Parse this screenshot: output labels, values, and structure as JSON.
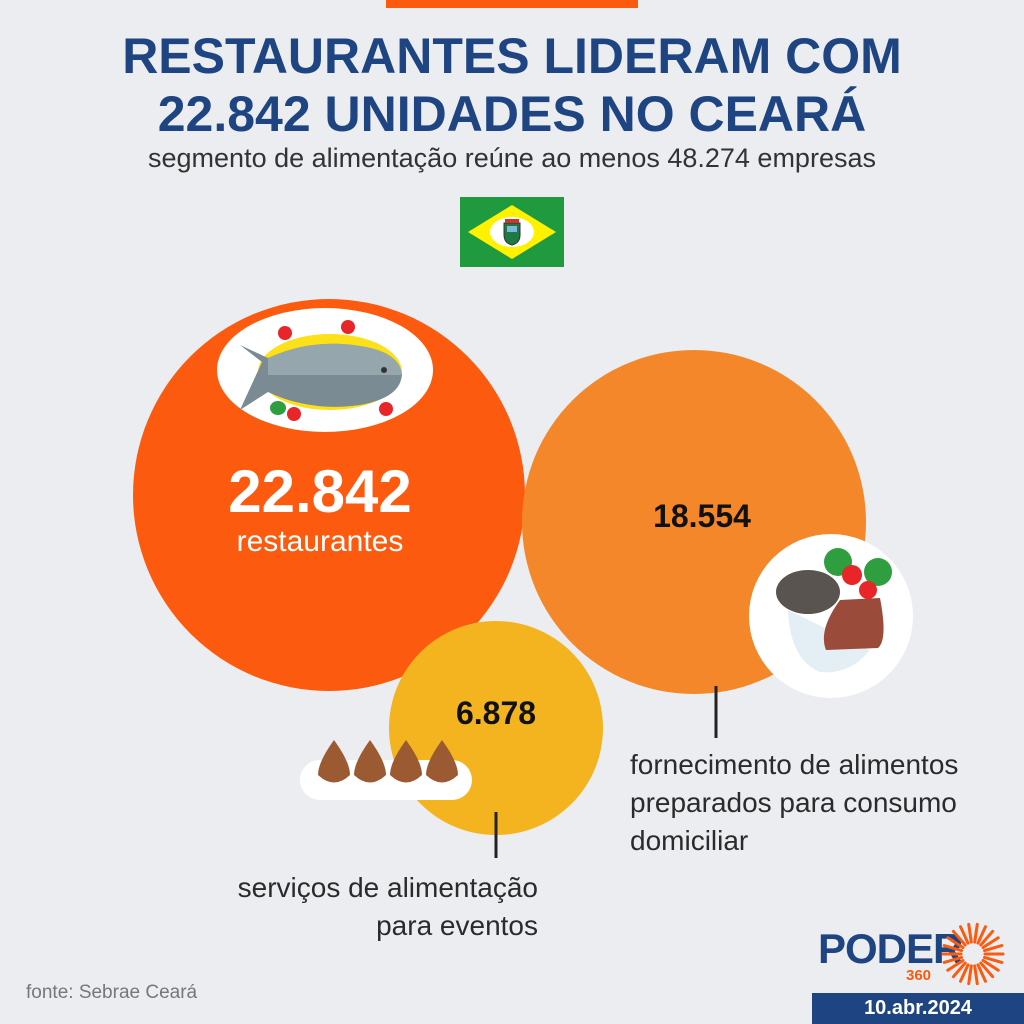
{
  "title_line1": "RESTAURANTES LIDERAM COM",
  "title_line2": "22.842 UNIDADES NO CEARÁ",
  "subtitle": "segmento de alimentação reúne ao menos 48.274 empresas",
  "source": "fonte: Sebrae Ceará",
  "logo": {
    "name": "PODER",
    "sub": "360"
  },
  "date": "10.abr.2024",
  "colors": {
    "title": "#1e4582",
    "restaurantes": "#fc5a0f",
    "fornecimento": "#f4872a",
    "eventos": "#f4b420"
  },
  "chart_data": {
    "type": "bubble",
    "items": [
      {
        "label": "restaurantes",
        "value": 22842,
        "value_text": "22.842",
        "icon": "fish-plate-icon",
        "color": "#fc5a0f"
      },
      {
        "label": "fornecimento de alimentos preparados para consumo domiciliar",
        "value": 18554,
        "value_text": "18.554",
        "icon": "meal-plate-icon",
        "color": "#f4872a"
      },
      {
        "label": "serviços de alimentação para eventos",
        "value": 6878,
        "value_text": "6.878",
        "icon": "coxinha-tray-icon",
        "color": "#f4b420"
      }
    ]
  },
  "labels": {
    "restaurantes": "restaurantes",
    "fornecimento": [
      "fornecimento de alimentos",
      "preparados para consumo",
      "domiciliar"
    ],
    "eventos": [
      "serviços de alimentação",
      "para eventos"
    ]
  }
}
